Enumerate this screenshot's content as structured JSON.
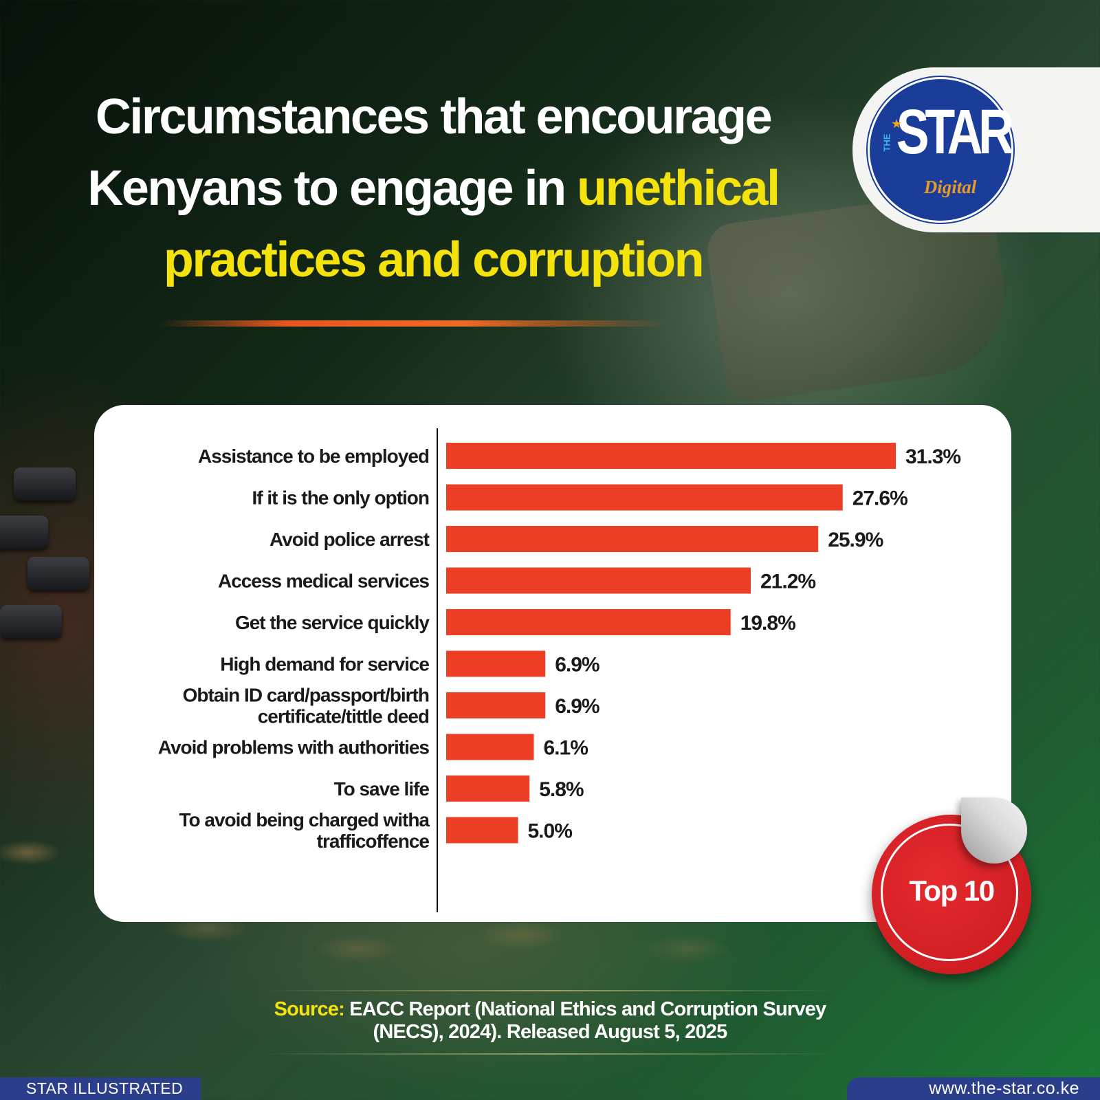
{
  "headline": {
    "line1": "Circumstances that encourage",
    "line2_white": "Kenyans to engage in ",
    "line2_highlight": "unethical",
    "line3_highlight": "practices and corruption"
  },
  "logo": {
    "the": "THE",
    "word": "STAR",
    "sub": "Digital"
  },
  "badge": {
    "label": "Top 10"
  },
  "source": {
    "label": "Source:",
    "line1": " EACC Report (National Ethics and Corruption Survey",
    "line2": "(NECS), 2024). Released August 5, 2025"
  },
  "footer": {
    "left": "STAR ILLUSTRATED",
    "right": "www.the-star.co.ke"
  },
  "colors": {
    "bar": "#ec3e25",
    "highlight": "#f4e20c",
    "brand_blue": "#1b3d9a"
  },
  "chart_data": {
    "type": "bar",
    "orientation": "horizontal",
    "categories": [
      [
        "Assistance to be employed"
      ],
      [
        "If it is the only option"
      ],
      [
        "Avoid police arrest"
      ],
      [
        "Access medical services"
      ],
      [
        "Get the service quickly"
      ],
      [
        "High demand for service"
      ],
      [
        "Obtain ID card/passport/birth",
        "certificate/tittle deed"
      ],
      [
        "Avoid problems with authorities"
      ],
      [
        "To save life"
      ],
      [
        "To avoid being charged witha",
        "trafficoffence"
      ]
    ],
    "values": [
      31.3,
      27.6,
      25.9,
      21.2,
      19.8,
      6.9,
      6.9,
      6.1,
      5.8,
      5.0
    ],
    "value_labels": [
      "31.3%",
      "27.6%",
      "25.9%",
      "21.2%",
      "19.8%",
      "6.9%",
      "6.9%",
      "6.1%",
      "5.8%",
      "5.0%"
    ],
    "unit": "%",
    "xlim": [
      0,
      31.3
    ],
    "grid": false,
    "legend": "none"
  }
}
